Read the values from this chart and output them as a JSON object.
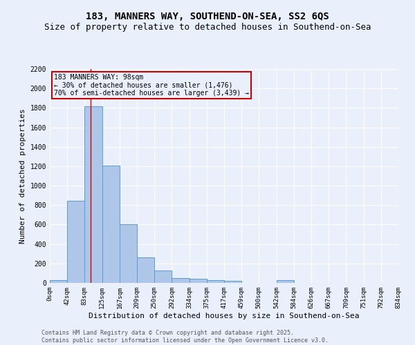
{
  "title_line1": "183, MANNERS WAY, SOUTHEND-ON-SEA, SS2 6QS",
  "title_line2": "Size of property relative to detached houses in Southend-on-Sea",
  "xlabel": "Distribution of detached houses by size in Southend-on-Sea",
  "ylabel": "Number of detached properties",
  "footer_line1": "Contains HM Land Registry data © Crown copyright and database right 2025.",
  "footer_line2": "Contains public sector information licensed under the Open Government Licence v3.0.",
  "annotation_line1": "183 MANNERS WAY: 98sqm",
  "annotation_line2": "← 30% of detached houses are smaller (1,476)",
  "annotation_line3": "70% of semi-detached houses are larger (3,439) →",
  "property_size": 98,
  "bin_edges": [
    0,
    42,
    83,
    125,
    167,
    209,
    250,
    292,
    334,
    375,
    417,
    459,
    500,
    542,
    584,
    626,
    667,
    709,
    751,
    792,
    834
  ],
  "bin_counts": [
    25,
    845,
    1820,
    1210,
    600,
    260,
    130,
    50,
    40,
    30,
    20,
    0,
    0,
    25,
    0,
    0,
    0,
    0,
    0,
    0
  ],
  "bar_color": "#aec6e8",
  "bar_edge_color": "#5b9bd5",
  "vline_color": "#cc0000",
  "vline_x": 98,
  "box_color": "#cc0000",
  "ylim": [
    0,
    2200
  ],
  "yticks": [
    0,
    200,
    400,
    600,
    800,
    1000,
    1200,
    1400,
    1600,
    1800,
    2000,
    2200
  ],
  "bg_color": "#eaf0fb",
  "grid_color": "#ffffff",
  "title_fontsize": 10,
  "subtitle_fontsize": 9,
  "tick_fontsize": 6.5,
  "label_fontsize": 8,
  "footer_fontsize": 6
}
